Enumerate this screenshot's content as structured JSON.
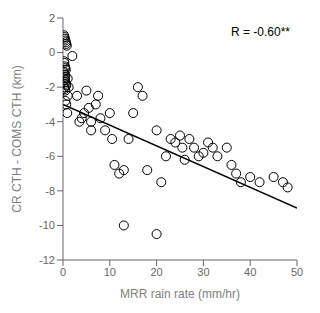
{
  "chart_data": {
    "type": "scatter",
    "x": [
      0.2,
      0.3,
      0.4,
      0.5,
      0.6,
      0.7,
      0.8,
      0.2,
      0.3,
      0.4,
      0.5,
      0.6,
      0.2,
      0.3,
      0.4,
      0.5,
      0.3,
      0.4,
      0.5,
      0.6,
      0.7,
      0.3,
      0.4,
      0.5,
      0.5,
      0.7,
      0.9,
      1.0,
      1.0,
      1.2,
      2.0,
      3.0,
      3.5,
      4.0,
      4.5,
      5.0,
      5.5,
      6.0,
      6.0,
      7.0,
      7.5,
      8.0,
      9.0,
      10.0,
      10.5,
      11.0,
      12.0,
      13.0,
      14.0,
      15.0,
      16.0,
      17.0,
      18.0,
      20.0,
      21.0,
      22.0,
      23.0,
      24.0,
      25.0,
      25.5,
      26.0,
      27.0,
      28.0,
      29.0,
      30.0,
      31.0,
      32.0,
      33.0,
      35.0,
      36.0,
      37.0,
      38.0,
      40.0,
      42.0,
      45.0,
      47.0,
      48.0,
      13.0,
      20.0
    ],
    "y": [
      1.0,
      0.9,
      0.8,
      0.7,
      0.6,
      0.5,
      0.4,
      -0.5,
      -0.6,
      -0.8,
      -0.9,
      -1.0,
      -1.1,
      -1.2,
      -1.3,
      -1.4,
      -1.5,
      -1.6,
      -1.7,
      -1.8,
      -1.9,
      -2.0,
      -2.1,
      -2.2,
      -2.8,
      -3.0,
      -3.5,
      -2.5,
      -1.5,
      -2.0,
      -0.2,
      -2.5,
      -4.0,
      -3.8,
      -3.5,
      -2.2,
      -3.2,
      -4.0,
      -4.5,
      -3.0,
      -2.5,
      -3.8,
      -4.5,
      -3.5,
      -5.0,
      -6.5,
      -7.0,
      -6.8,
      -5.0,
      -3.5,
      -2.0,
      -2.5,
      -6.8,
      -4.5,
      -7.5,
      -6.0,
      -5.0,
      -5.2,
      -4.8,
      -5.5,
      -6.2,
      -5.0,
      -5.5,
      -6.0,
      -5.8,
      -5.2,
      -5.5,
      -6.0,
      -5.5,
      -6.5,
      -7.0,
      -7.5,
      -7.2,
      -7.5,
      -7.2,
      -7.5,
      -7.8,
      -10.0,
      -10.5
    ],
    "regression_x": [
      0,
      50
    ],
    "regression_y": [
      -3.0,
      -9.0
    ],
    "xlabel": "MRR rain rate (mm/hr)",
    "ylabel": "CR CTH - COMS CTH (km)",
    "annotation": "R = -0.60**",
    "xlim": [
      0,
      50
    ],
    "ylim": [
      -12,
      2
    ],
    "xticks": [
      0,
      10,
      20,
      30,
      40,
      50
    ],
    "yticks": [
      -12,
      -10,
      -8,
      -6,
      -4,
      -2,
      0,
      2
    ],
    "color": "black",
    "marker": "circle",
    "grid": false
  }
}
